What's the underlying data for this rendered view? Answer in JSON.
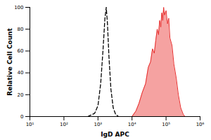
{
  "chart_data": {
    "type": "line",
    "x_label": "IgD APC",
    "y_label": "Relative Cell Count",
    "log": "x",
    "xlim": [
      10,
      1000000
    ],
    "xticks": [
      {
        "value": 10,
        "label": "10¹"
      },
      {
        "value": 100,
        "label": "10²"
      },
      {
        "value": 1000,
        "label": "10³"
      },
      {
        "value": 10000,
        "label": "10⁴"
      },
      {
        "value": 100000,
        "label": "10⁵"
      },
      {
        "value": 1000000,
        "label": "10⁶"
      }
    ],
    "ylim": [
      0,
      100
    ],
    "yticks": [
      0,
      20,
      40,
      60,
      80,
      100
    ],
    "series": [
      {
        "type": "line",
        "color": "#000000",
        "line_style": "dashed",
        "x": [
          500,
          800,
          1000,
          1200,
          1400,
          1600,
          1750,
          1900,
          2100,
          2400,
          2800,
          3300,
          4000
        ],
        "values": [
          0,
          3,
          10,
          30,
          60,
          90,
          100,
          85,
          55,
          25,
          8,
          2,
          0
        ]
      },
      {
        "type": "area",
        "color": "#e8302f",
        "line_style": "solid",
        "x": [
          10000,
          13000,
          16000,
          20000,
          25000,
          30000,
          35000,
          40000,
          45000,
          50000,
          55000,
          60000,
          65000,
          70000,
          75000,
          80000,
          85000,
          90000,
          100000,
          110000,
          120000,
          130000,
          150000,
          170000,
          200000,
          230000,
          270000,
          320000,
          360000
        ],
        "values": [
          0,
          5,
          12,
          22,
          30,
          45,
          50,
          62,
          58,
          70,
          80,
          75,
          88,
          82,
          95,
          88,
          100,
          93,
          97,
          85,
          90,
          72,
          65,
          48,
          35,
          20,
          8,
          2,
          0
        ]
      }
    ]
  }
}
